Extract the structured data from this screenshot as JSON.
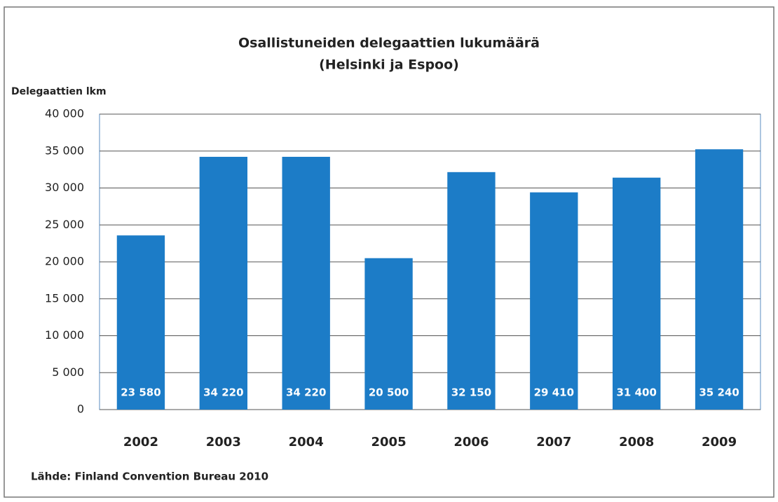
{
  "chart_data": {
    "type": "bar",
    "title": "Osallistuneiden delegaattien lukumäärä",
    "subtitle": "(Helsinki ja Espoo)",
    "y_label": "Delegaattien lkm",
    "source": "Lähde: Finland Convention Bureau 2010",
    "categories": [
      "2002",
      "2003",
      "2004",
      "2005",
      "2006",
      "2007",
      "2008",
      "2009"
    ],
    "values": [
      23580,
      34220,
      34220,
      20500,
      32150,
      29410,
      31400,
      35240
    ],
    "value_labels": [
      "23 580",
      "34 220",
      "34 220",
      "20 500",
      "32 150",
      "29 410",
      "31 400",
      "35 240"
    ],
    "color": "#1c7cc7",
    "ylim": [
      0,
      40000
    ],
    "yticks": [
      0,
      {
        "value": 5000,
        "label": "5 000"
      },
      {
        "value": 10000,
        "label": "10 000"
      },
      {
        "value": 15000,
        "label": "15 000"
      },
      {
        "value": 20000,
        "label": "20 000"
      },
      {
        "value": 25000,
        "label": "25 000"
      },
      {
        "value": 30000,
        "label": "30 000"
      },
      {
        "value": 35000,
        "label": "35 000"
      },
      {
        "value": 40000,
        "label": "40 000"
      }
    ],
    "grid": true
  }
}
